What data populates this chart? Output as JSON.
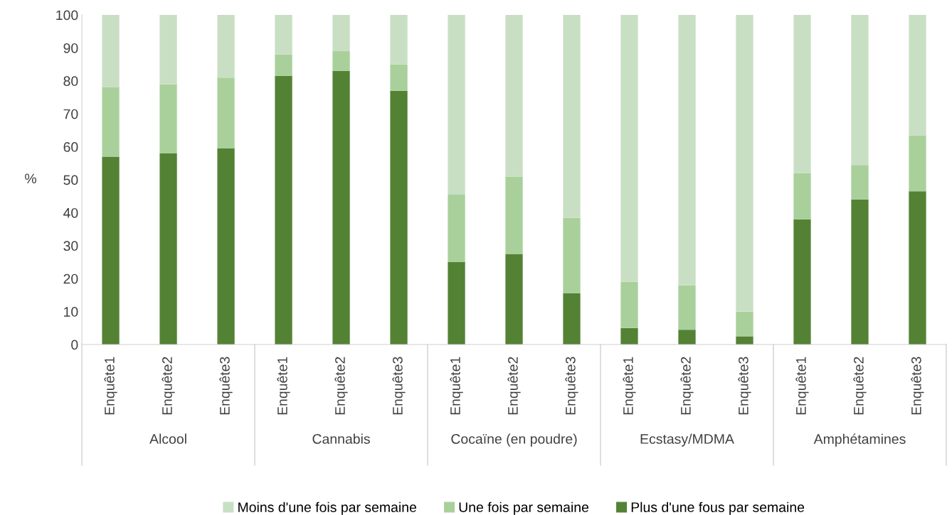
{
  "chart_data": {
    "type": "bar",
    "stacked": true,
    "ylabel": "%",
    "ylim": [
      0,
      100
    ],
    "yticks": [
      0,
      10,
      20,
      30,
      40,
      50,
      60,
      70,
      80,
      90,
      100
    ],
    "grid": false,
    "legend": "bottom",
    "categories": [
      "Enquête1",
      "Enquête2",
      "Enquête3",
      "Enquête1",
      "Enquête2",
      "Enquête3",
      "Enquête1",
      "Enquête2",
      "Enquête3",
      "Enquête1",
      "Enquête2",
      "Enquête3",
      "Enquête1",
      "Enquête2",
      "Enquête3"
    ],
    "annotations": [
      "Alcool",
      "Cannabis",
      "Cocaïne (en poudre)",
      "Ecstasy/MDMA",
      "Amphétamines"
    ],
    "series": [
      {
        "name": "Plus d'une fous par semaine",
        "color": "#548235",
        "values": [
          57,
          58,
          59.5,
          81.5,
          83,
          77,
          25,
          27.5,
          15.5,
          5,
          4.5,
          2.5,
          38,
          44,
          46.5
        ]
      },
      {
        "name": "Une fois par semaine",
        "color": "#a9d09b",
        "values": [
          21,
          21,
          21.5,
          6.5,
          6,
          8,
          20.5,
          23.5,
          23,
          14,
          13.5,
          7.5,
          14,
          10.5,
          17
        ]
      },
      {
        "name": "Moins d'une fois par semaine",
        "color": "#c9dfc4",
        "values": [
          22,
          21,
          19,
          12,
          11,
          15,
          54.5,
          49,
          61.5,
          81,
          82,
          90,
          48,
          45.5,
          36.5
        ]
      }
    ]
  }
}
